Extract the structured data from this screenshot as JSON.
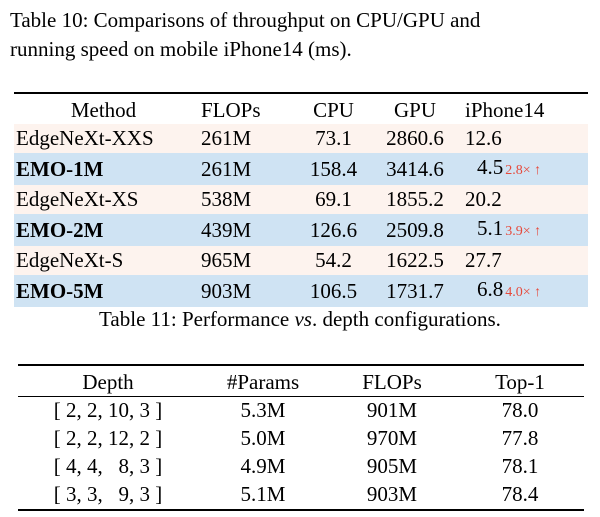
{
  "table10": {
    "caption": "Table 10: Comparisons of throughput on CPU/GPU and running speed on mobile iPhone14 (ms).",
    "caption_line1": "Table 10: Comparisons of throughput on CPU/GPU and",
    "caption_line2": "running speed on mobile iPhone14 (ms).",
    "headers": [
      "Method",
      "FLOPs",
      "CPU",
      "GPU",
      "iPhone14"
    ],
    "rows": [
      {
        "method": "EdgeNeXt-XXS",
        "flops": "261M",
        "cpu": "73.1",
        "gpu": "2860.6",
        "iphone": "12.6",
        "speedup": ""
      },
      {
        "method": "EMO-1M",
        "flops": "261M",
        "cpu": "158.4",
        "gpu": "3414.6",
        "iphone": "4.5",
        "speedup": "2.8× ↑"
      },
      {
        "method": "EdgeNeXt-XS",
        "flops": "538M",
        "cpu": "69.1",
        "gpu": "1855.2",
        "iphone": "20.2",
        "speedup": ""
      },
      {
        "method": "EMO-2M",
        "flops": "439M",
        "cpu": "126.6",
        "gpu": "2509.8",
        "iphone": "5.1",
        "speedup": "3.9× ↑"
      },
      {
        "method": "EdgeNeXt-S",
        "flops": "965M",
        "cpu": "54.2",
        "gpu": "1622.5",
        "iphone": "27.7",
        "speedup": ""
      },
      {
        "method": "EMO-5M",
        "flops": "903M",
        "cpu": "106.5",
        "gpu": "1731.7",
        "iphone": "6.8",
        "speedup": "4.0× ↑"
      }
    ],
    "colors": {
      "baseline_row_bg": "#fdf3ee",
      "emo_row_bg": "#cfe3f3",
      "speedup_text": "#e64a3c"
    }
  },
  "table11": {
    "caption_prefix": "Table 11: Performance ",
    "caption_italic": "vs",
    "caption_suffix": ". depth configurations.",
    "headers": [
      "Depth",
      "#Params",
      "FLOPs",
      "Top-1"
    ],
    "rows": [
      {
        "depth": "[ 2, 2, 10, 3 ]",
        "params": "5.3M",
        "flops": "901M",
        "top1": "78.0"
      },
      {
        "depth": "[ 2, 2, 12, 2 ]",
        "params": "5.0M",
        "flops": "970M",
        "top1": "77.8"
      },
      {
        "depth": "[ 4, 4,   8, 3 ]",
        "params": "4.9M",
        "flops": "905M",
        "top1": "78.1"
      },
      {
        "depth": "[ 3, 3,   9, 3 ]",
        "params": "5.1M",
        "flops": "903M",
        "top1": "78.4"
      }
    ]
  }
}
